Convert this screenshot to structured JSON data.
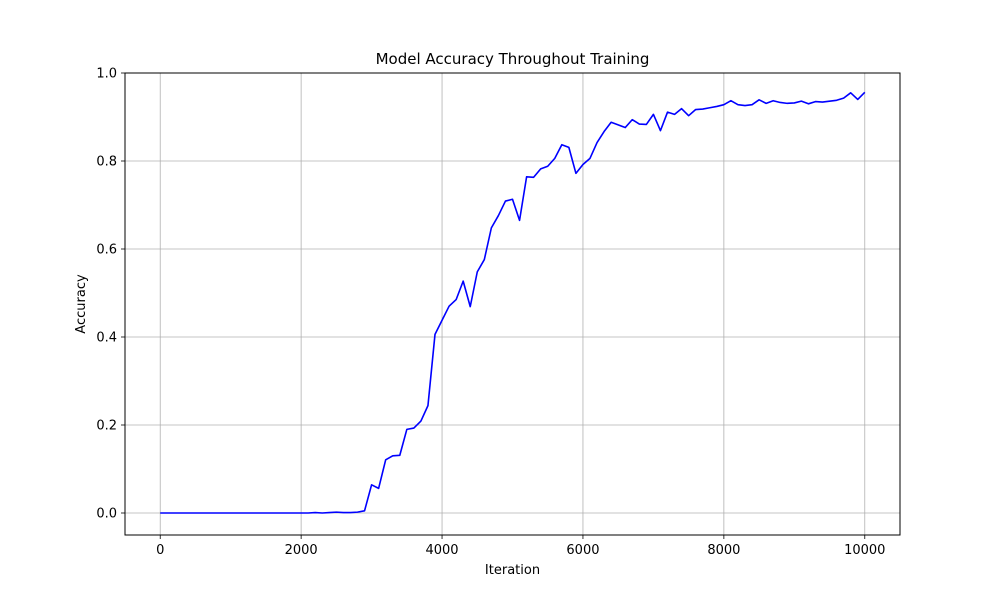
{
  "chart_data": {
    "type": "line",
    "title": "Model Accuracy Throughout Training",
    "xlabel": "Iteration",
    "ylabel": "Accuracy",
    "xlim": [
      -500,
      10500
    ],
    "ylim": [
      -0.05,
      1.0
    ],
    "xticks": [
      0,
      2000,
      4000,
      6000,
      8000,
      10000
    ],
    "yticks": [
      0.0,
      0.2,
      0.4,
      0.6,
      0.8,
      1.0
    ],
    "xtick_labels": [
      "0",
      "2000",
      "4000",
      "6000",
      "8000",
      "10000"
    ],
    "ytick_labels": [
      "0.0",
      "0.2",
      "0.4",
      "0.6",
      "0.8",
      "1.0"
    ],
    "grid": true,
    "series": [
      {
        "color": "#0000ff",
        "x": [
          0,
          100,
          200,
          300,
          400,
          500,
          600,
          700,
          800,
          900,
          1000,
          1100,
          1200,
          1300,
          1400,
          1500,
          1600,
          1700,
          1800,
          1900,
          2000,
          2100,
          2200,
          2300,
          2400,
          2500,
          2600,
          2700,
          2800,
          2900,
          3000,
          3100,
          3200,
          3300,
          3400,
          3500,
          3600,
          3700,
          3800,
          3900,
          4000,
          4100,
          4200,
          4300,
          4400,
          4500,
          4600,
          4700,
          4800,
          4900,
          5000,
          5100,
          5200,
          5300,
          5400,
          5500,
          5600,
          5700,
          5800,
          5900,
          6000,
          6100,
          6200,
          6300,
          6400,
          6500,
          6600,
          6700,
          6800,
          6900,
          7000,
          7100,
          7200,
          7300,
          7400,
          7500,
          7600,
          7700,
          7800,
          7900,
          8000,
          8100,
          8200,
          8300,
          8400,
          8500,
          8600,
          8700,
          8800,
          8900,
          9000,
          9100,
          9200,
          9300,
          9400,
          9500,
          9600,
          9700,
          9800,
          9900,
          10000
        ],
        "y": [
          0,
          0,
          0,
          0,
          0,
          0,
          0,
          0,
          0,
          0,
          0,
          0,
          0,
          0,
          0,
          0,
          0,
          0,
          0,
          0,
          0,
          0,
          0.001,
          0,
          0.001,
          0.002,
          0.001,
          0.001,
          0.002,
          0.005,
          0.064,
          0.056,
          0.121,
          0.13,
          0.131,
          0.19,
          0.193,
          0.209,
          0.244,
          0.406,
          0.438,
          0.47,
          0.485,
          0.527,
          0.469,
          0.548,
          0.576,
          0.648,
          0.676,
          0.709,
          0.713,
          0.665,
          0.764,
          0.763,
          0.782,
          0.788,
          0.806,
          0.837,
          0.831,
          0.772,
          0.792,
          0.806,
          0.842,
          0.867,
          0.888,
          0.882,
          0.876,
          0.894,
          0.884,
          0.883,
          0.906,
          0.869,
          0.911,
          0.906,
          0.919,
          0.903,
          0.917,
          0.918,
          0.921,
          0.924,
          0.928,
          0.937,
          0.928,
          0.926,
          0.928,
          0.939,
          0.931,
          0.937,
          0.933,
          0.931,
          0.932,
          0.936,
          0.93,
          0.935,
          0.934,
          0.936,
          0.938,
          0.943,
          0.955,
          0.94,
          0.956
        ]
      }
    ]
  }
}
